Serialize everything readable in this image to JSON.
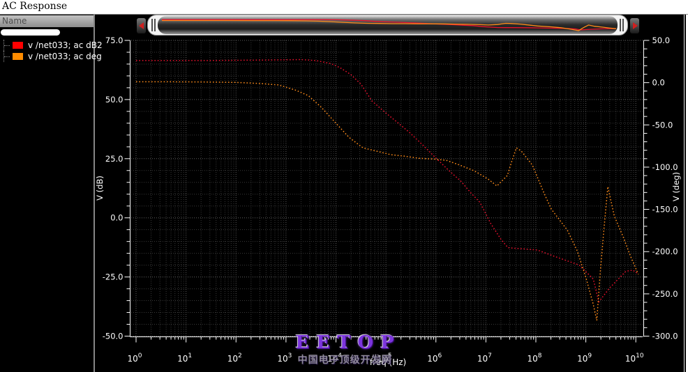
{
  "window": {
    "title": "AC Response"
  },
  "name_panel": {
    "header": "Name",
    "items": [
      {
        "label": "v /net033; ac dB2",
        "color": "#ff0000"
      },
      {
        "label": "v /net033; ac deg",
        "color": "#ff8c00"
      }
    ]
  },
  "watermark": {
    "title": "EETOP",
    "subtitle": "中国电子顶级开发网"
  },
  "chart_data": {
    "type": "line",
    "title": "AC Response",
    "x_axis": {
      "label": "freq (Hz)",
      "scale": "log",
      "min_exp": 0,
      "max_exp": 10
    },
    "y_left": {
      "label": "V (dB)",
      "min": -50,
      "max": 75,
      "major": 25,
      "minor": 5,
      "tick_labels": [
        "75.0",
        "50.0",
        "25.0",
        "0.0",
        "-25.0",
        "-50.0"
      ]
    },
    "y_right": {
      "label": "V (deg)",
      "min": -300,
      "max": 50,
      "major": 50,
      "minor": 10,
      "tick_labels": [
        "50.0",
        "0.0",
        "-50.0",
        "-100.0",
        "-150.0",
        "-200.0",
        "-250.0",
        "-300.0"
      ]
    },
    "grid": true,
    "legend_position": "left-panel",
    "series": [
      {
        "name": "v /net033; ac dB2",
        "axis": "left",
        "color": "#e8112d",
        "style": "dotted",
        "points": [
          [
            0,
            66.5
          ],
          [
            0.7,
            66.5
          ],
          [
            1.4,
            66.5
          ],
          [
            2.0,
            66.6
          ],
          [
            2.6,
            66.7
          ],
          [
            3.0,
            66.8
          ],
          [
            3.3,
            66.9
          ],
          [
            3.6,
            66.5
          ],
          [
            3.9,
            65.2
          ],
          [
            4.08,
            63.5
          ],
          [
            4.3,
            60.5
          ],
          [
            4.5,
            56.5
          ],
          [
            4.72,
            49.4
          ],
          [
            5.0,
            44.3
          ],
          [
            5.25,
            40.0
          ],
          [
            5.47,
            36.1
          ],
          [
            5.75,
            30.5
          ],
          [
            6.0,
            25.3
          ],
          [
            6.25,
            20.2
          ],
          [
            6.5,
            15.5
          ],
          [
            6.7,
            10.5
          ],
          [
            6.88,
            6.6
          ],
          [
            7.1,
            -2.5
          ],
          [
            7.3,
            -9.0
          ],
          [
            7.44,
            -12.6
          ],
          [
            7.6,
            -12.9
          ],
          [
            7.75,
            -13.1
          ],
          [
            8.03,
            -13.6
          ],
          [
            8.35,
            -16.1
          ],
          [
            8.87,
            -20.0
          ],
          [
            9.15,
            -25.9
          ],
          [
            9.26,
            -35.5
          ],
          [
            9.47,
            -29.8
          ],
          [
            9.8,
            -22.6
          ],
          [
            9.94,
            -22.1
          ],
          [
            10.05,
            -23.7
          ]
        ]
      },
      {
        "name": "v /net033; ac deg",
        "axis": "right",
        "color": "#ff8c1a",
        "style": "dotted",
        "points": [
          [
            0,
            1
          ],
          [
            0.7,
            1
          ],
          [
            1.4,
            0.8
          ],
          [
            2.0,
            0.3
          ],
          [
            2.5,
            -1.0
          ],
          [
            2.86,
            -2.8
          ],
          [
            3.2,
            -9.0
          ],
          [
            3.45,
            -15.5
          ],
          [
            3.7,
            -28.7
          ],
          [
            3.98,
            -46.6
          ],
          [
            4.26,
            -64.7
          ],
          [
            4.54,
            -77.1
          ],
          [
            4.82,
            -81.2
          ],
          [
            5.1,
            -85.3
          ],
          [
            5.38,
            -87.0
          ],
          [
            5.66,
            -89.5
          ],
          [
            5.94,
            -90.3
          ],
          [
            6.21,
            -92.0
          ],
          [
            6.49,
            -97.8
          ],
          [
            6.77,
            -104.4
          ],
          [
            7.05,
            -114.3
          ],
          [
            7.22,
            -122.3
          ],
          [
            7.43,
            -109.9
          ],
          [
            7.51,
            -94.5
          ],
          [
            7.61,
            -77.1
          ],
          [
            7.71,
            -81.0
          ],
          [
            7.93,
            -97.5
          ],
          [
            8.17,
            -131.6
          ],
          [
            8.31,
            -149.8
          ],
          [
            8.63,
            -174.6
          ],
          [
            8.83,
            -199.4
          ],
          [
            9.01,
            -232.4
          ],
          [
            9.15,
            -262.7
          ],
          [
            9.22,
            -281.4
          ],
          [
            9.29,
            -224.0
          ],
          [
            9.36,
            -174.6
          ],
          [
            9.44,
            -123.1
          ],
          [
            9.57,
            -158.0
          ],
          [
            9.75,
            -182.8
          ],
          [
            9.89,
            -204.8
          ],
          [
            10.05,
            -226.8
          ]
        ]
      }
    ]
  }
}
